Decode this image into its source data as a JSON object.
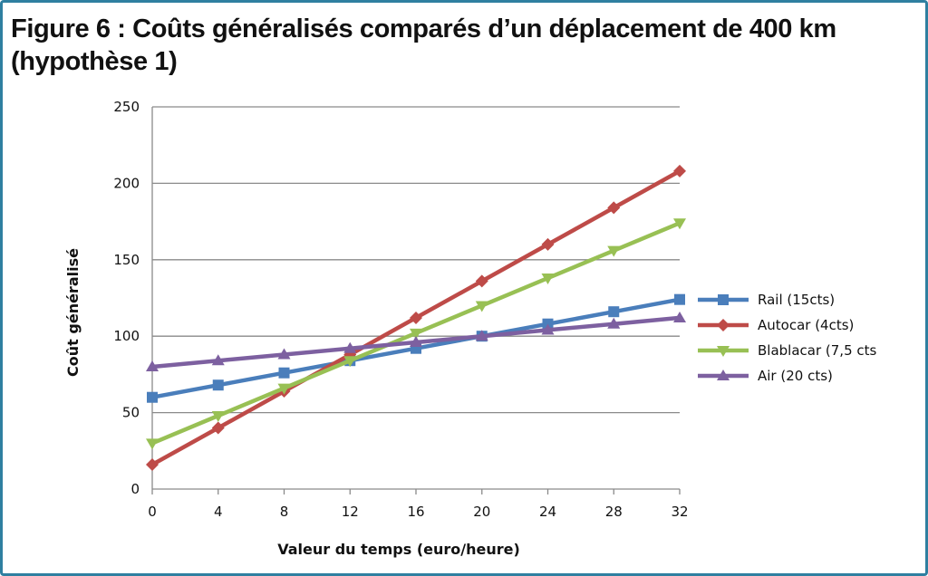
{
  "figure": {
    "title_line1": "Figure 6 : Coûts généralisés comparés d’un déplacement de 400 km",
    "title_line2": "(hypothèse 1)"
  },
  "chart_data": {
    "type": "line",
    "title": "Figure 6 : Coûts généralisés comparés d’un déplacement de 400 km (hypothèse 1)",
    "xlabel": "Valeur du temps  (euro/heure)",
    "ylabel": "Coût généralisé",
    "x": [
      0,
      4,
      8,
      12,
      16,
      20,
      24,
      28,
      32
    ],
    "xlim": [
      0,
      32
    ],
    "ylim": [
      0,
      250
    ],
    "y_ticks": [
      0,
      50,
      100,
      150,
      200,
      250
    ],
    "grid": "horizontal",
    "legend_position": "right",
    "series": [
      {
        "name": "Rail (15cts)",
        "color": "#4a7ebb",
        "marker": "square",
        "values": [
          60,
          68,
          76,
          84,
          92,
          100,
          108,
          116,
          124
        ]
      },
      {
        "name": "Autocar (4cts)",
        "color": "#be4b48",
        "marker": "diamond",
        "values": [
          16,
          40,
          64,
          88,
          112,
          136,
          160,
          184,
          208
        ]
      },
      {
        "name": "Blablacar (7,5 cts",
        "color": "#98c054",
        "marker": "triangle-down",
        "values": [
          30,
          48,
          66,
          84,
          102,
          120,
          138,
          156,
          174
        ]
      },
      {
        "name": "Air (20 cts)",
        "color": "#7d60a0",
        "marker": "triangle-up",
        "values": [
          80,
          84,
          88,
          92,
          96,
          100,
          104,
          108,
          112
        ]
      }
    ]
  }
}
